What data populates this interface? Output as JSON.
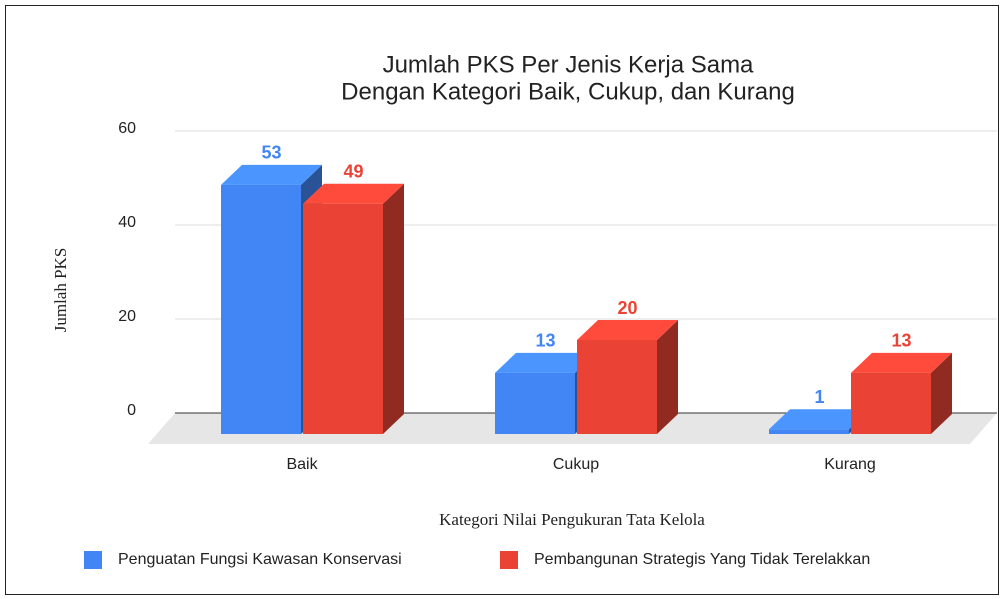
{
  "chart_data": {
    "type": "bar3d",
    "title": [
      "Jumlah PKS Per Jenis Kerja Sama",
      "Dengan Kategori Baik, Cukup, dan Kurang"
    ],
    "xlabel": "Kategori Nilai Pengukuran Tata Kelola",
    "ylabel": "Jumlah PKS",
    "categories": [
      "Baik",
      "Cukup",
      "Kurang"
    ],
    "series": [
      {
        "name": "Penguatan Fungsi Kawasan Konservasi",
        "color": "#4285f4",
        "values": [
          53,
          13,
          1
        ]
      },
      {
        "name": "Pembangunan Strategis Yang Tidak Terelakkan",
        "color": "#ea4335",
        "values": [
          49,
          20,
          13
        ]
      }
    ],
    "ylim": [
      0,
      60
    ],
    "yticks": [
      0,
      20,
      40,
      60
    ],
    "grid": true,
    "legend": "bottom"
  }
}
